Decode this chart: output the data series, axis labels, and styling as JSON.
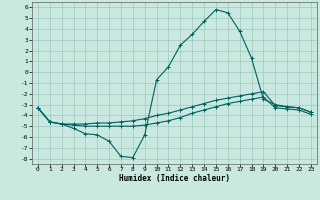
{
  "xlabel": "Humidex (Indice chaleur)",
  "background_color": "#c8e8e0",
  "grid_color": "#a0c8c0",
  "line_color": "#006060",
  "xlim": [
    -0.5,
    23.5
  ],
  "ylim": [
    -8.5,
    6.5
  ],
  "x_ticks": [
    0,
    1,
    2,
    3,
    4,
    5,
    6,
    7,
    8,
    9,
    10,
    11,
    12,
    13,
    14,
    15,
    16,
    17,
    18,
    19,
    20,
    21,
    22,
    23
  ],
  "y_ticks": [
    -8,
    -7,
    -6,
    -5,
    -4,
    -3,
    -2,
    -1,
    0,
    1,
    2,
    3,
    4,
    5,
    6
  ],
  "curve1_x": [
    0,
    1,
    2,
    3,
    4,
    5,
    6,
    7,
    8,
    9,
    10,
    11,
    12,
    13,
    14,
    15,
    16,
    17,
    18,
    19,
    20,
    21,
    22,
    23
  ],
  "curve1_y": [
    -3.3,
    -4.6,
    -4.8,
    -5.2,
    -5.7,
    -5.8,
    -6.4,
    -7.8,
    -7.9,
    -5.8,
    -0.7,
    0.5,
    2.5,
    3.5,
    4.7,
    5.8,
    5.5,
    3.8,
    1.3,
    -2.5,
    -3.0,
    -3.2,
    -3.3,
    -3.7
  ],
  "curve2_x": [
    0,
    1,
    2,
    3,
    4,
    5,
    6,
    7,
    8,
    9,
    10,
    11,
    12,
    13,
    14,
    15,
    16,
    17,
    18,
    19,
    20,
    21,
    22,
    23
  ],
  "curve2_y": [
    -3.3,
    -4.6,
    -4.8,
    -4.8,
    -4.8,
    -4.7,
    -4.7,
    -4.6,
    -4.5,
    -4.3,
    -4.0,
    -3.8,
    -3.5,
    -3.2,
    -2.9,
    -2.6,
    -2.4,
    -2.2,
    -2.0,
    -1.8,
    -3.1,
    -3.2,
    -3.3,
    -3.7
  ],
  "curve3_x": [
    0,
    1,
    2,
    3,
    4,
    5,
    6,
    7,
    8,
    9,
    10,
    11,
    12,
    13,
    14,
    15,
    16,
    17,
    18,
    19,
    20,
    21,
    22,
    23
  ],
  "curve3_y": [
    -3.3,
    -4.6,
    -4.8,
    -4.9,
    -5.0,
    -5.0,
    -5.0,
    -5.0,
    -5.0,
    -4.9,
    -4.7,
    -4.5,
    -4.2,
    -3.8,
    -3.5,
    -3.2,
    -2.9,
    -2.7,
    -2.5,
    -2.3,
    -3.3,
    -3.4,
    -3.5,
    -3.9
  ]
}
